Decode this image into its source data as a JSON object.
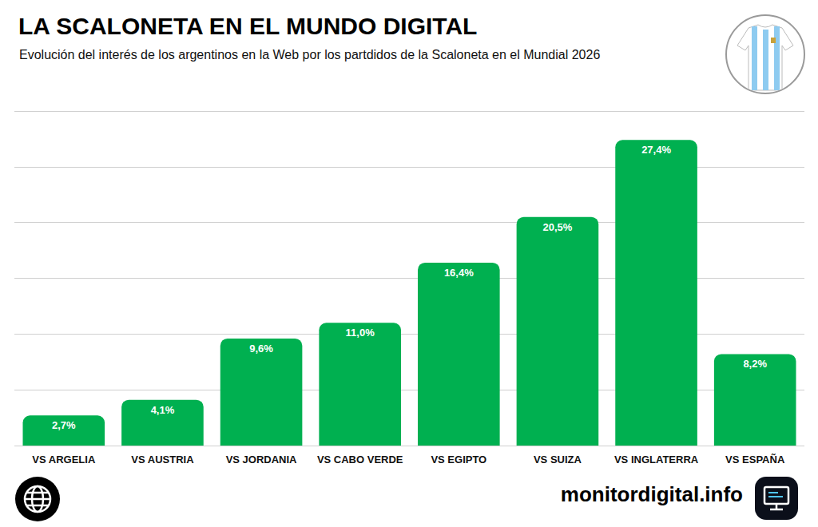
{
  "chart_data": {
    "type": "bar",
    "title": "LA SCALONETA EN EL MUNDO DIGITAL",
    "subtitle": "Evolución del interés de los argentinos en la Web por los partdidos de la Scaloneta en el Mundial 2026",
    "source": "monitordigital.info",
    "categories": [
      "VS ARGELIA",
      "VS AUSTRIA",
      "VS JORDANIA",
      "VS CABO VERDE",
      "VS EGIPTO",
      "VS SUIZA",
      "VS INGLATERRA",
      "VS ESPAÑA"
    ],
    "values": [
      2.7,
      4.1,
      9.6,
      11.0,
      16.4,
      20.5,
      27.4,
      8.2
    ],
    "value_labels": [
      "2,7%",
      "4,1%",
      "9,6%",
      "11,0%",
      "16,4%",
      "20,5%",
      "27,4%",
      "8,2%"
    ],
    "color": "#00b050",
    "ylim": [
      0,
      30
    ],
    "yticks": [
      0,
      5,
      10,
      15,
      20,
      25,
      30
    ],
    "grid": true,
    "data_labels": true,
    "tick_labels": "x"
  }
}
